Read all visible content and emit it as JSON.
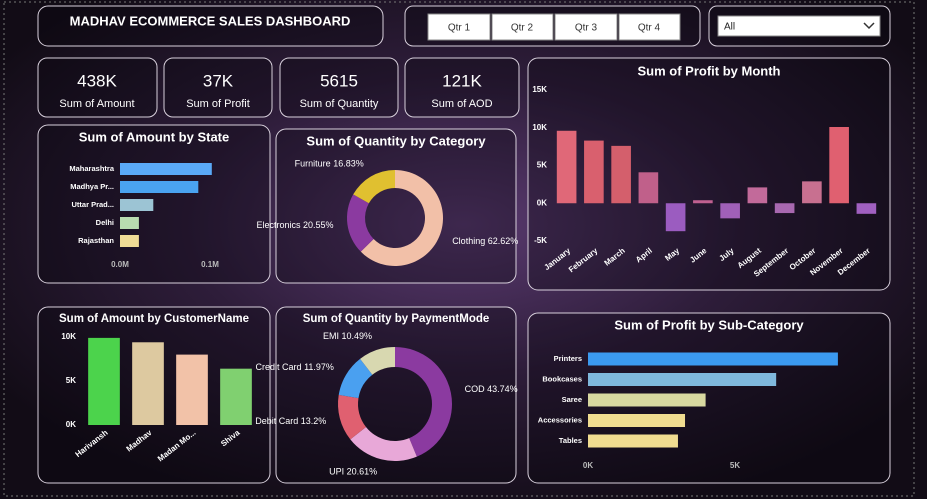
{
  "header": {
    "title": "MADHAV ECOMMERCE SALES DASHBOARD"
  },
  "slicers": {
    "quarters": [
      "Qtr 1",
      "Qtr 2",
      "Qtr 3",
      "Qtr 4"
    ],
    "dropdown": "All"
  },
  "kpis": [
    {
      "value": "438K",
      "label": "Sum of Amount"
    },
    {
      "value": "37K",
      "label": "Sum of Profit"
    },
    {
      "value": "5615",
      "label": "Sum of Quantity"
    },
    {
      "value": "121K",
      "label": "Sum of AOD"
    }
  ],
  "chart_data": [
    {
      "type": "bar",
      "title": "Sum of Profit by Month",
      "categories": [
        "January",
        "February",
        "March",
        "April",
        "May",
        "June",
        "July",
        "August",
        "September",
        "October",
        "November",
        "December"
      ],
      "values": [
        9600,
        8300,
        7600,
        4100,
        -3700,
        400,
        -2000,
        2100,
        -1300,
        2900,
        10100,
        -1400
      ],
      "colors": [
        "#e06878",
        "#d9606e",
        "#d45f6c",
        "#c0608a",
        "#9b5cc0",
        "#c06090",
        "#a060b8",
        "#c26a9a",
        "#a868b0",
        "#c87090",
        "#e06070",
        "#a060c0"
      ],
      "ylim": [
        -5000,
        15000
      ],
      "yticks": [
        {
          "value": -5000,
          "label": "-5K"
        },
        {
          "value": 0,
          "label": "0K"
        },
        {
          "value": 5000,
          "label": "5K"
        },
        {
          "value": 10000,
          "label": "10K"
        },
        {
          "value": 15000,
          "label": "15K"
        }
      ]
    },
    {
      "type": "barh",
      "title": "Sum of Amount by State",
      "categories": [
        "Maharashtra",
        "Madhya Pr...",
        "Uttar Prad...",
        "Delhi",
        "Rajasthan"
      ],
      "values": [
        102000,
        87000,
        37000,
        21000,
        21000
      ],
      "colors": [
        "#5aa9f7",
        "#4aa3f0",
        "#9cc4d4",
        "#b9dcb0",
        "#f0dc96"
      ],
      "xlim": [
        0,
        125000
      ],
      "xticks": [
        {
          "value": 0,
          "label": "0.0M"
        },
        {
          "value": 100000,
          "label": "0.1M"
        }
      ]
    },
    {
      "type": "donut",
      "title": "Sum of Quantity by Category",
      "categories": [
        "Clothing",
        "Electronics",
        "Furniture"
      ],
      "values": [
        62.62,
        20.55,
        16.83
      ],
      "value_labels": [
        "62.62%",
        "20.55%",
        "16.83%"
      ],
      "colors": [
        "#f2c0a8",
        "#8b3aa0",
        "#e0c030"
      ]
    },
    {
      "type": "bar",
      "title": "Sum of Amount by CustomerName",
      "categories": [
        "Harivansh",
        "Madhav",
        "Madan Mo...",
        "Shiva"
      ],
      "values": [
        9900,
        9400,
        8000,
        6400
      ],
      "colors": [
        "#4cd34c",
        "#ddc9a0",
        "#f2c2a8",
        "#80d070"
      ],
      "ylim": [
        0,
        10500
      ],
      "yticks": [
        {
          "value": 0,
          "label": "0K"
        },
        {
          "value": 5000,
          "label": "5K"
        },
        {
          "value": 10000,
          "label": "10K"
        }
      ]
    },
    {
      "type": "donut",
      "title": "Sum of Quantity by PaymentMode",
      "categories": [
        "COD",
        "UPI",
        "Debit Card",
        "Credit Card",
        "EMI"
      ],
      "values": [
        43.74,
        20.61,
        13.2,
        11.97,
        10.49
      ],
      "value_labels": [
        "43.74%",
        "20.61%",
        "13.2%",
        "11.97%",
        "10.49%"
      ],
      "colors": [
        "#8b3aa0",
        "#e8a8d8",
        "#e06070",
        "#4aa0f0",
        "#d8d8b0"
      ]
    },
    {
      "type": "barh",
      "title": "Sum of Profit by Sub-Category",
      "categories": [
        "Printers",
        "Bookcases",
        "Saree",
        "Accessories",
        "Tables"
      ],
      "values": [
        8500,
        6400,
        4000,
        3300,
        3060
      ],
      "colors": [
        "#3b9af0",
        "#7fb8dc",
        "#d8d8a0",
        "#f0dc90",
        "#f0dc90"
      ],
      "xlim": [
        0,
        10000
      ],
      "xticks": [
        {
          "value": 0,
          "label": "0K"
        },
        {
          "value": 5000,
          "label": "5K"
        }
      ]
    }
  ]
}
